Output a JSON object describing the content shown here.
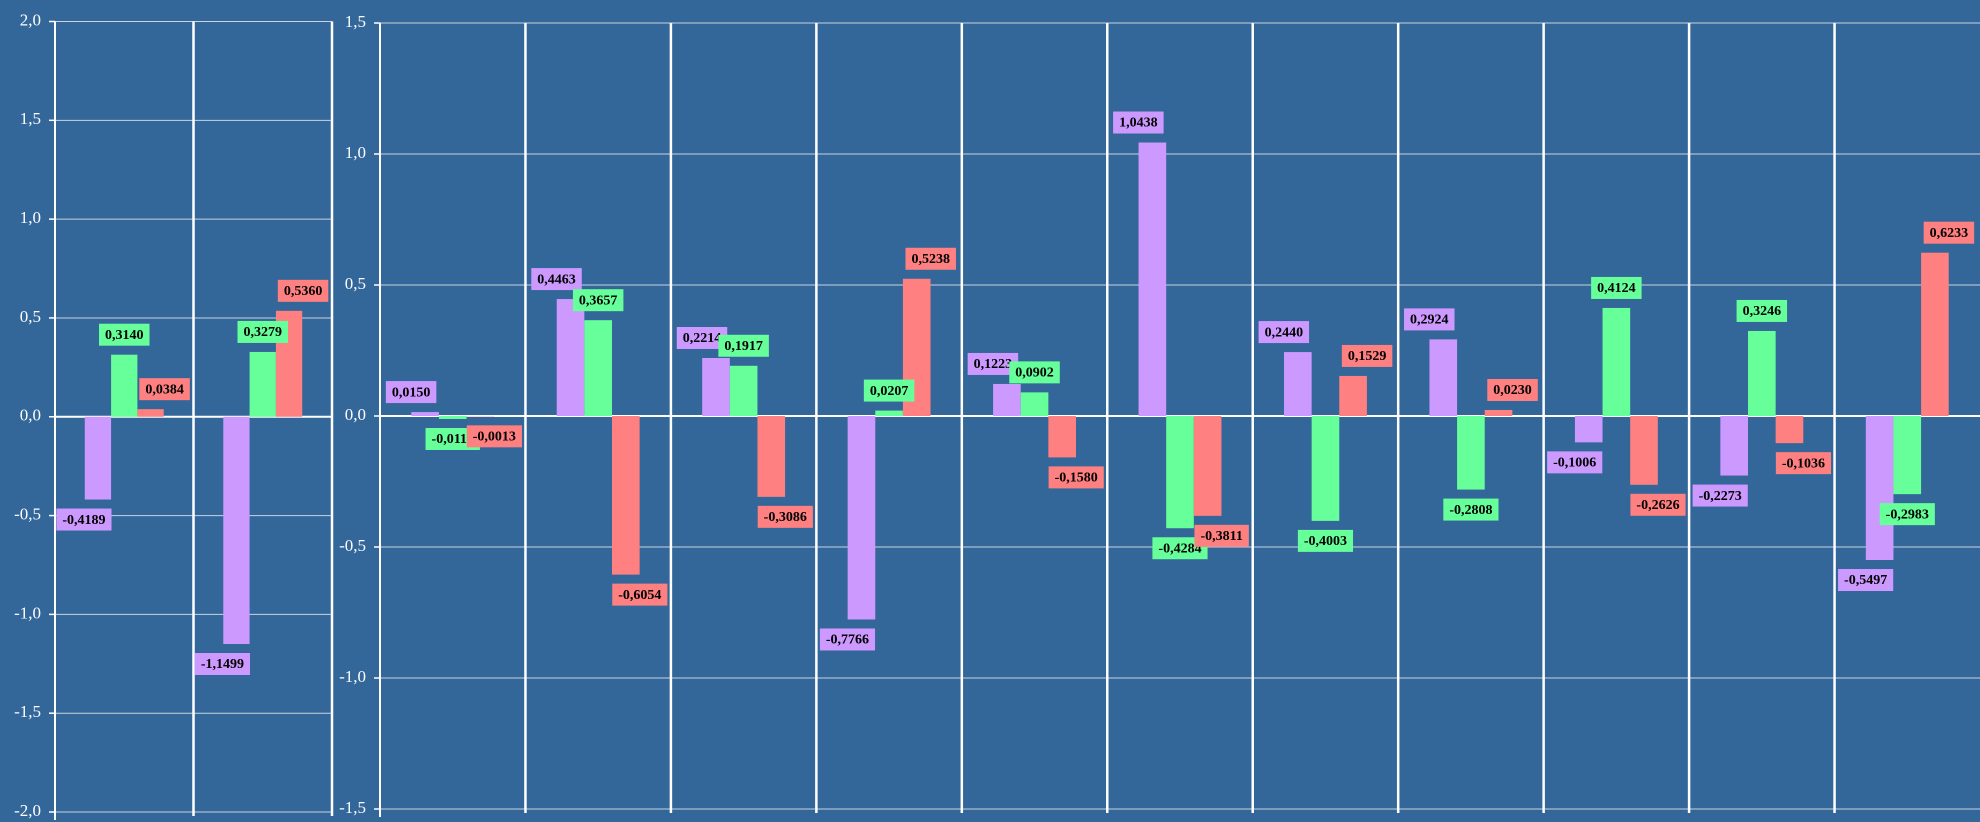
{
  "chart_data": [
    {
      "type": "bar",
      "categories": [
        null,
        null
      ],
      "series": [
        {
          "color": "#cc99ff",
          "values": [
            -0.4189,
            -1.1499
          ],
          "value_labels": [
            "-0,4189",
            "-1,1499"
          ]
        },
        {
          "color": "#66ff99",
          "values": [
            0.314,
            0.3279
          ],
          "value_labels": [
            "0,3140",
            "0,3279"
          ]
        },
        {
          "color": "#ff8080",
          "values": [
            0.0384,
            0.536
          ],
          "value_labels": [
            "0,0384",
            "0,5360"
          ]
        }
      ],
      "ylim": [
        -2.0,
        2.0
      ],
      "yticks": [
        {
          "value": -2.0,
          "label": "-2,0"
        },
        {
          "value": -1.5,
          "label": "-1,5"
        },
        {
          "value": -1.0,
          "label": "-1,0"
        },
        {
          "value": -0.5,
          "label": "-0,5"
        },
        {
          "value": 0,
          "label": "0,0"
        },
        {
          "value": 0.5,
          "label": "0,5"
        },
        {
          "value": 1.0,
          "label": "1,0"
        },
        {
          "value": 1.5,
          "label": "1,5"
        },
        {
          "value": 2.0,
          "label": "2,0"
        }
      ],
      "grid": true
    },
    {
      "type": "bar",
      "categories": [
        null,
        null,
        null,
        null,
        null,
        null,
        null,
        null,
        null,
        null,
        null
      ],
      "series": [
        {
          "color": "#cc99ff",
          "values": [
            0.015,
            0.4463,
            0.2214,
            -0.7766,
            0.1223,
            1.0438,
            0.244,
            0.2924,
            -0.1006,
            -0.2273,
            -0.5497
          ],
          "value_labels": [
            "0,0150",
            "0,4463",
            "0,2214",
            "-0,7766",
            "0,1223",
            "1,0438",
            "0,2440",
            "0,2924",
            "-0,1006",
            "-0,2273",
            "-0,5497"
          ]
        },
        {
          "color": "#66ff99",
          "values": [
            -0.0114,
            0.3657,
            0.1917,
            0.0207,
            0.0902,
            -0.4284,
            -0.4003,
            -0.2808,
            0.4124,
            0.3246,
            -0.2983
          ],
          "value_labels": [
            "-0,0114",
            "0,3657",
            "0,1917",
            "0,0207",
            "0,0902",
            "-0,4284",
            "-0,4003",
            "-0,2808",
            "0,4124",
            "0,3246",
            "-0,2983"
          ]
        },
        {
          "color": "#ff8080",
          "values": [
            -0.0013,
            -0.6054,
            -0.3086,
            0.5238,
            -0.158,
            -0.3811,
            0.1529,
            0.023,
            -0.2626,
            -0.1036,
            0.6233
          ],
          "value_labels": [
            "-0,0013",
            "-0,6054",
            "-0,3086",
            "0,5238",
            "-0,1580",
            "-0,3811",
            "0,1529",
            "0,0230",
            "-0,2626",
            "-0,1036",
            "0,6233"
          ]
        }
      ],
      "ylim": [
        -1.5,
        1.5
      ],
      "yticks": [
        {
          "value": -1.5,
          "label": "-1,5"
        },
        {
          "value": -1.0,
          "label": "-1,0"
        },
        {
          "value": -0.5,
          "label": "-0,5"
        },
        {
          "value": 0,
          "label": "0,0"
        },
        {
          "value": 0.5,
          "label": "0,5"
        },
        {
          "value": 1.0,
          "label": "1,0"
        },
        {
          "value": 1.5,
          "label": "1,5"
        }
      ],
      "grid": true
    }
  ]
}
